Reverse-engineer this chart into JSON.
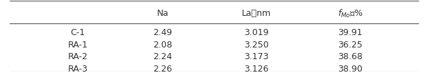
{
  "columns": [
    "",
    "Na",
    "La，nm",
    "fₘₒ，%"
  ],
  "col_header_display": [
    "",
    "Na",
    "La， nm",
    "fₘₒ，  %"
  ],
  "rows": [
    [
      "C-1",
      "2.49",
      "3.019",
      "39.91"
    ],
    [
      "RA-1",
      "2.08",
      "3.250",
      "36.25"
    ],
    [
      "RA-2",
      "2.24",
      "3.173",
      "38.68"
    ],
    [
      "RA-3",
      "2.26",
      "3.126",
      "38.90"
    ]
  ],
  "col_labels": [
    "",
    "Na",
    "La， nm",
    "f_Mo，  %"
  ],
  "background_color": "#ffffff",
  "text_color": "#333333",
  "line_color": "#555555",
  "font_size": 9,
  "figsize": [
    6.16,
    1.09
  ],
  "dpi": 100
}
